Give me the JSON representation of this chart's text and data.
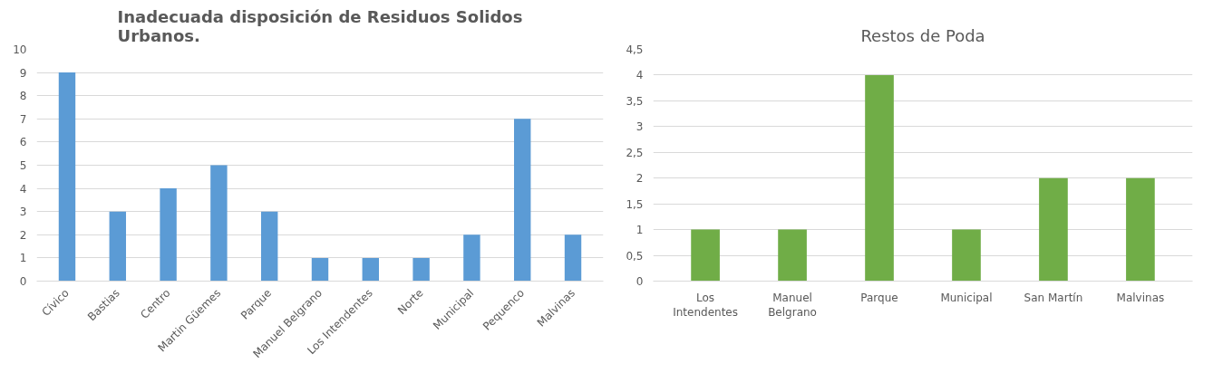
{
  "chart_data": [
    {
      "type": "bar",
      "title": "Inadecuada disposición de Residuos Solidos Urbanos.",
      "categories": [
        "Cívico",
        "Bastias",
        "Centro",
        "Martin Güemes",
        "Parque",
        "Manuel Belgrano",
        "Los Intendentes",
        "Norte",
        "Municipal",
        "Pequenco",
        "Malvinas"
      ],
      "series": [
        {
          "color": "#5b9bd5",
          "values": [
            9,
            3,
            4,
            5,
            3,
            1,
            1,
            1,
            2,
            7,
            2
          ]
        }
      ],
      "ylim": [
        0,
        10
      ],
      "yticks": [
        0,
        1,
        2,
        3,
        4,
        5,
        6,
        7,
        8,
        9,
        10
      ],
      "grid": "y"
    },
    {
      "type": "bar",
      "title": "Restos de Poda",
      "categories": [
        "Los Intendentes",
        "Manuel Belgrano",
        "Parque",
        "Municipal",
        "San Martín",
        "Malvinas"
      ],
      "series": [
        {
          "color": "#70ad47",
          "values": [
            1,
            1,
            4,
            1,
            2,
            2
          ]
        }
      ],
      "ylim": [
        0,
        4.5
      ],
      "yticks": [
        0,
        {
          "value": 0.5,
          "label": "0,5"
        },
        1,
        {
          "value": 1.5,
          "label": "1,5"
        },
        2,
        {
          "value": 2.5,
          "label": "2,5"
        },
        3,
        {
          "value": 3.5,
          "label": "3,5"
        },
        4,
        {
          "value": 4.5,
          "label": "4,5"
        }
      ],
      "grid": "y"
    }
  ]
}
